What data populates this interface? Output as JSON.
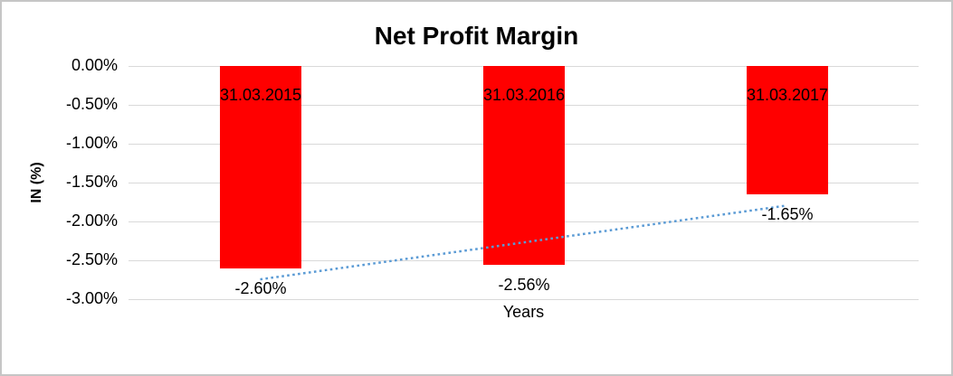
{
  "chart_data": {
    "type": "bar",
    "title": "Net Profit Margin",
    "xlabel": "Years",
    "ylabel": "IN (%)",
    "categories": [
      "31.03.2015",
      "31.03.2016",
      "31.03.2017"
    ],
    "values": [
      -2.6,
      -2.56,
      -1.65
    ],
    "value_labels": [
      "-2.60%",
      "-2.56%",
      "-1.65%"
    ],
    "yticks": [
      {
        "value": 0,
        "label": "0.00%"
      },
      {
        "value": -0.5,
        "label": "-0.50%"
      },
      {
        "value": -1.0,
        "label": "-1.00%"
      },
      {
        "value": -1.5,
        "label": "-1.50%"
      },
      {
        "value": -2.0,
        "label": "-2.00%"
      },
      {
        "value": -2.5,
        "label": "-2.50%"
      },
      {
        "value": -3.0,
        "label": "-3.00%"
      }
    ],
    "ylim": [
      -3.0,
      0
    ],
    "grid": true,
    "legend": false,
    "bar_color": "#FF0000",
    "gridline_color": "#D9D9D9",
    "text_color": "#000000",
    "background_color": "#FFFFFF",
    "border_color": "#C6C6C6",
    "trendline": {
      "type": "linear",
      "style": "dotted",
      "color": "#5B9BD5"
    }
  }
}
